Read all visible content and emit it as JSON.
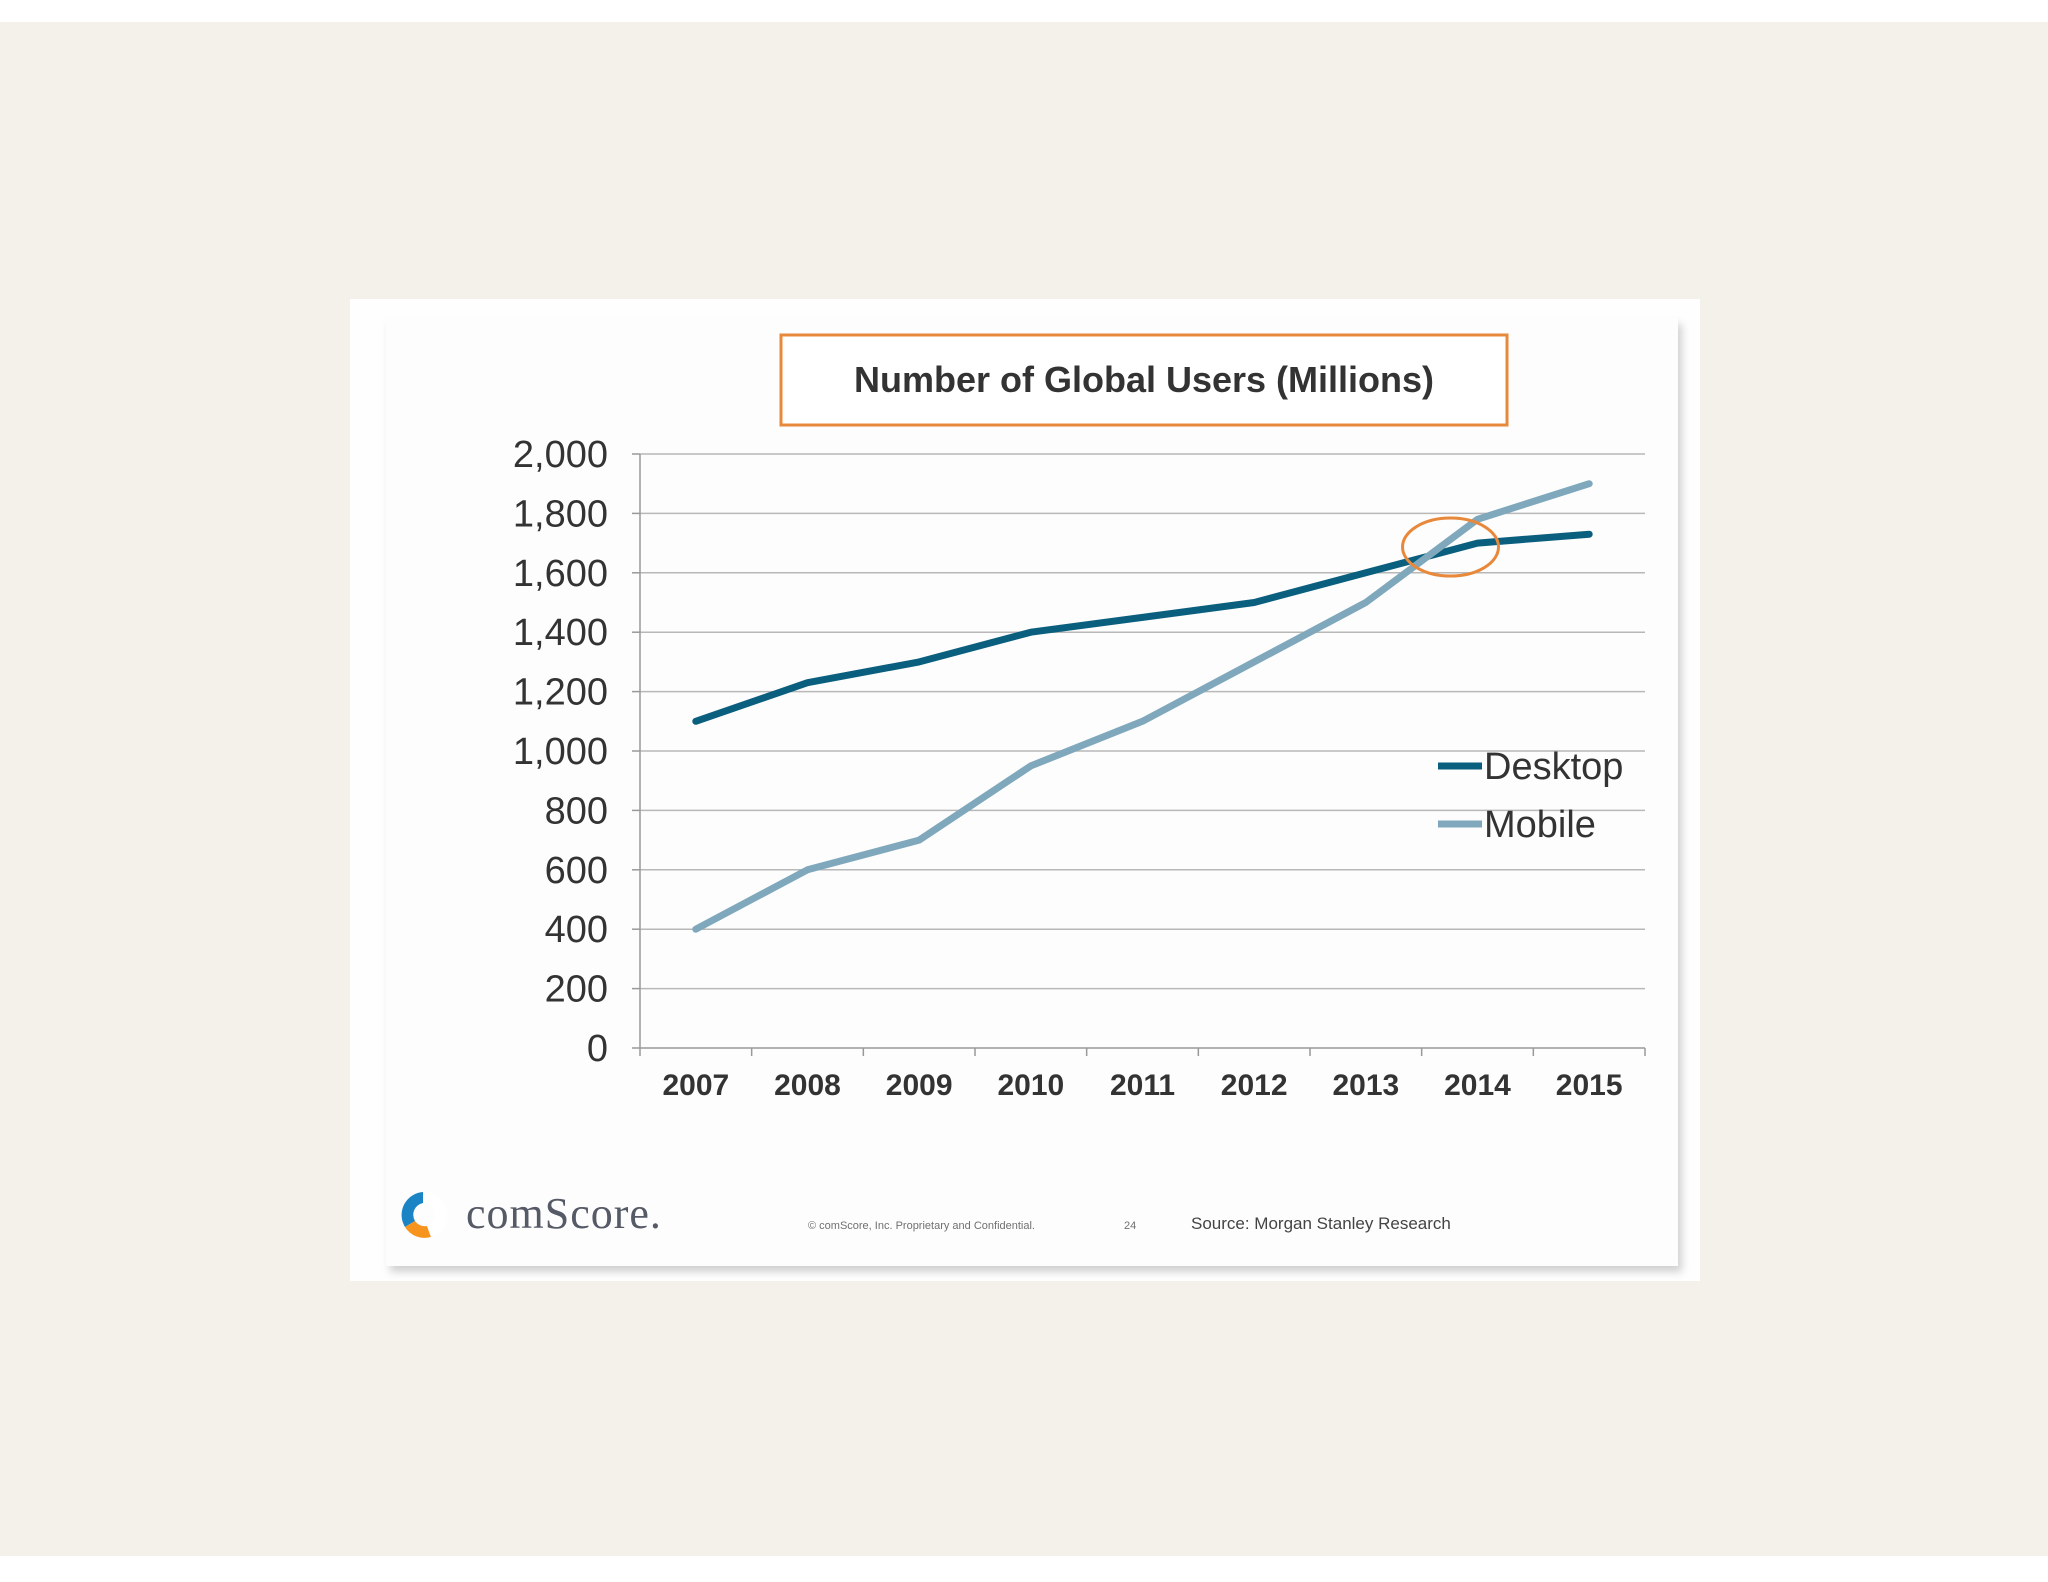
{
  "chart_data": {
    "type": "line",
    "title": "Number of Global Users (Millions)",
    "categories": [
      "2007",
      "2008",
      "2009",
      "2010",
      "2011",
      "2012",
      "2013",
      "2014",
      "2015"
    ],
    "yticks": [
      "0",
      "200",
      "400",
      "600",
      "800",
      "1,000",
      "1,200",
      "1,400",
      "1,600",
      "1,800",
      "2,000"
    ],
    "ylim": [
      0,
      2000
    ],
    "grid": true,
    "legend_position": "right",
    "series": [
      {
        "name": "Desktop",
        "color": "#0b5f7e",
        "values": [
          1100,
          1230,
          1300,
          1400,
          1450,
          1500,
          1600,
          1700,
          1730
        ]
      },
      {
        "name": "Mobile",
        "color": "#7fa8bc",
        "values": [
          400,
          600,
          700,
          950,
          1100,
          1300,
          1500,
          1780,
          1900
        ]
      }
    ],
    "annotation": {
      "shape": "ellipse",
      "color": "#e8883a",
      "near_category": "2014",
      "near_value": 1680
    }
  },
  "footer": {
    "logo_text": "comScore.",
    "copyright": "© comScore, Inc. Proprietary and Confidential.",
    "page_number": "24",
    "source": "Source: Morgan Stanley Research"
  },
  "colors": {
    "title_border": "#e8883a",
    "grid": "#b8b8b8",
    "text": "#333333"
  }
}
